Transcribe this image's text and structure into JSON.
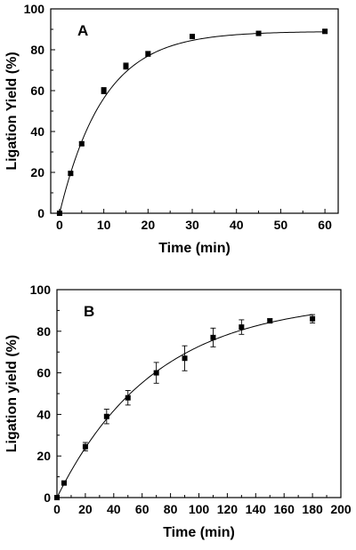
{
  "chart_data": [
    {
      "type": "scatter",
      "panel_label": "A",
      "xlabel": "Time (min)",
      "ylabel": "Ligation Yield (%)",
      "xlim": [
        -2,
        63
      ],
      "ylim": [
        0,
        100
      ],
      "x_ticks": [
        0,
        10,
        20,
        30,
        40,
        50,
        60
      ],
      "y_ticks": [
        0,
        20,
        40,
        60,
        80,
        100
      ],
      "grid": false,
      "series": [
        {
          "points": [
            {
              "x": 0,
              "y": 0,
              "err": 0.5
            },
            {
              "x": 2.5,
              "y": 19.5,
              "err": 0.8
            },
            {
              "x": 5,
              "y": 34,
              "err": 0.8
            },
            {
              "x": 10,
              "y": 60,
              "err": 1.5
            },
            {
              "x": 15,
              "y": 72,
              "err": 1.5
            },
            {
              "x": 20,
              "y": 78,
              "err": 1.2
            },
            {
              "x": 30,
              "y": 86.5,
              "err": 1
            },
            {
              "x": 45,
              "y": 88,
              "err": 1
            },
            {
              "x": 60,
              "y": 89,
              "err": 0.8
            }
          ],
          "fit": {
            "amplitude": 89,
            "rate": 0.1,
            "x_range": [
              0,
              60
            ]
          }
        }
      ]
    },
    {
      "type": "scatter",
      "panel_label": "B",
      "xlabel": "Time (min)",
      "ylabel": "Ligation yield (%)",
      "xlim": [
        0,
        200
      ],
      "ylim": [
        0,
        100
      ],
      "x_ticks": [
        0,
        20,
        40,
        60,
        80,
        100,
        120,
        140,
        160,
        180,
        200
      ],
      "y_ticks": [
        0,
        20,
        40,
        60,
        80,
        100
      ],
      "grid": false,
      "series": [
        {
          "points": [
            {
              "x": 0,
              "y": 0,
              "err": 0.5
            },
            {
              "x": 5,
              "y": 7,
              "err": 0.8
            },
            {
              "x": 20,
              "y": 24.5,
              "err": 2
            },
            {
              "x": 35,
              "y": 39,
              "err": 3.5
            },
            {
              "x": 50,
              "y": 48,
              "err": 3.5
            },
            {
              "x": 70,
              "y": 60,
              "err": 5
            },
            {
              "x": 90,
              "y": 67,
              "err": 6
            },
            {
              "x": 110,
              "y": 77,
              "err": 4.5
            },
            {
              "x": 130,
              "y": 82,
              "err": 3.5
            },
            {
              "x": 150,
              "y": 85,
              "err": 1
            },
            {
              "x": 180,
              "y": 86,
              "err": 2
            }
          ],
          "fit": {
            "amplitude": 95,
            "rate": 0.0145,
            "x_range": [
              0,
              180
            ]
          }
        }
      ]
    }
  ]
}
